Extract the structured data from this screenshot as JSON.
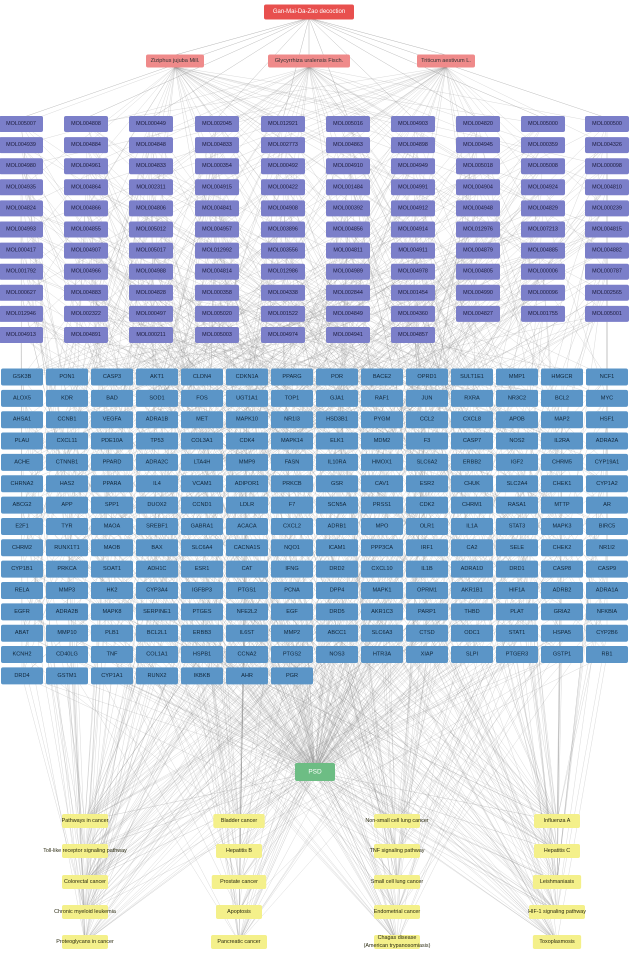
{
  "title": "Gan-Mai-Da-Zao decoction",
  "herbs": [
    "Ziziphus jujuba Mill.",
    "Glycyrrhiza uralensis Fisch.",
    "Triticum aestivum L."
  ],
  "molecule_columns": [
    [
      "MOL005007",
      "MOL004939",
      "MOL004980",
      "MOL004935",
      "MOL004824",
      "MOL004993",
      "MOL000417",
      "MOL001792",
      "MOL000627",
      "MOL012946",
      "MOL004913"
    ],
    [
      "MOL004808",
      "MOL004884",
      "MOL004961",
      "MOL004864",
      "MOL004866",
      "MOL004855",
      "MOL004907",
      "MOL004966",
      "MOL004883",
      "MOL002322",
      "MOL004891"
    ],
    [
      "MOL000449",
      "MOL004848",
      "MOL004833",
      "MOL002311",
      "MOL004806",
      "MOL005012",
      "MOL005017",
      "MOL004988",
      "MOL004828",
      "MOL000497",
      "MOL000211"
    ],
    [
      "MOL002045",
      "MOL004833",
      "MOL000354",
      "MOL004915",
      "MOL004841",
      "MOL004957",
      "MOL012992",
      "MOL004814",
      "MOL000358",
      "MOL005020",
      "MOL005003"
    ],
    [
      "MOL012921",
      "MOL002773",
      "MOL000492",
      "MOL000422",
      "MOL004908",
      "MOL003896",
      "MOL003556",
      "MOL012986",
      "MOL004338",
      "MOL001522",
      "MOL004974"
    ],
    [
      "MOL005016",
      "MOL004863",
      "MOL004910",
      "MOL001484",
      "MOL000392",
      "MOL004856",
      "MOL004811",
      "MOL004989",
      "MOL002844",
      "MOL004849",
      "MOL004941"
    ],
    [
      "MOL004903",
      "MOL004898",
      "MOL004949",
      "MOL004991",
      "MOL004912",
      "MOL004914",
      "MOL004911",
      "MOL004978",
      "MOL001454",
      "MOL004360",
      "MOL004857"
    ],
    [
      "MOL004820",
      "MOL004945",
      "MOL005018",
      "MOL004904",
      "MOL004948",
      "MOL012976",
      "MOL004879",
      "MOL004805",
      "MOL004990",
      "MOL004827"
    ],
    [
      "MOL005000",
      "MOL000359",
      "MOL005008",
      "MOL004924",
      "MOL004829",
      "MOL007213",
      "MOL004885",
      "MOL000006",
      "MOL000096",
      "MOL001755"
    ],
    [
      "MOL000500",
      "MOL004326",
      "MOL000098",
      "MOL004810",
      "MOL000239",
      "MOL004815",
      "MOL004882",
      "MOL000787",
      "MOL002565",
      "MOL005001"
    ]
  ],
  "target_rows": [
    [
      "GSK3B",
      "PON1",
      "CASP3",
      "AKT1",
      "CLDN4",
      "CDKN1A",
      "PPARG",
      "POR",
      "BACE2",
      "OPRD1",
      "SULT1E1",
      "MMP1",
      "HMGCR",
      "NCF1"
    ],
    [
      "ALOX5",
      "KDR",
      "BAD",
      "SOD1",
      "FOS",
      "UGT1A1",
      "TOP1",
      "GJA1",
      "RAF1",
      "JUN",
      "RXRA",
      "NR3C2",
      "BCL2",
      "MYC"
    ],
    [
      "AHSA1",
      "CCNB1",
      "VEGFA",
      "ADRA1B",
      "MET",
      "MAPK10",
      "NR1I3",
      "HSD3B1",
      "PYGM",
      "CCL2",
      "CXCL8",
      "APOB",
      "MAP2",
      "HSF1"
    ],
    [
      "PLAU",
      "CXCL11",
      "PDE10A",
      "TP53",
      "COL3A1",
      "CDK4",
      "MAPK14",
      "ELK1",
      "MDM2",
      "F3",
      "CASP7",
      "NOS2",
      "IL2RA",
      "ADRA2A"
    ],
    [
      "ACHE",
      "CTNNB1",
      "PPARD",
      "ADRA2C",
      "LTA4H",
      "MMP9",
      "FASN",
      "IL10RA",
      "HMOX1",
      "SLC6A2",
      "ERBB2",
      "IGF2",
      "CHRM5",
      "CYP19A1"
    ],
    [
      "CHRNA2",
      "HAS2",
      "PPARA",
      "IL4",
      "VCAM1",
      "ADIPOR1",
      "PRKCB",
      "GSR",
      "CAV1",
      "ESR2",
      "CHUK",
      "SLC2A4",
      "CHEK1",
      "CYP1A2"
    ],
    [
      "ABCG2",
      "APP",
      "SPP1",
      "DUOX2",
      "CCND1",
      "LDLR",
      "F7",
      "SCN5A",
      "PRSS1",
      "CDK2",
      "CHRM1",
      "RASA1",
      "MTTP",
      "AR"
    ],
    [
      "E2F1",
      "TYR",
      "MAOA",
      "SREBF1",
      "GABRA1",
      "ACACA",
      "CXCL2",
      "ADRB1",
      "MPO",
      "OLR1",
      "IL1A",
      "STAT3",
      "MAPK3",
      "BIRC5"
    ],
    [
      "CHRM2",
      "RUNX1T1",
      "MAOB",
      "BAX",
      "SLC6A4",
      "CACNA1S",
      "NQO1",
      "ICAM1",
      "PPP3CA",
      "IRF1",
      "CA2",
      "SELE",
      "CHEK2",
      "NR1I2"
    ],
    [
      "CYP1B1",
      "PRKCA",
      "SOAT1",
      "ADH1C",
      "ESR1",
      "CAT",
      "IFNG",
      "DRD2",
      "CXCL10",
      "IL1B",
      "ADRA1D",
      "DRD1",
      "CASP8",
      "CASP9"
    ],
    [
      "RELA",
      "MMP3",
      "HK2",
      "CYP3A4",
      "IGFBP3",
      "PTGS1",
      "PCNA",
      "DPP4",
      "MAPK1",
      "OPRM1",
      "AKR1B1",
      "HIF1A",
      "ADRB2",
      "ADRA1A"
    ],
    [
      "EGFR",
      "ADRA2B",
      "MAPK8",
      "SERPINE1",
      "PTGES",
      "NFE2L2",
      "EGF",
      "DRD5",
      "AKR1C3",
      "PARP1",
      "THBD",
      "PLAT",
      "GRIA2",
      "NFKBIA"
    ],
    [
      "ABAT",
      "MMP10",
      "PLB1",
      "BCL2L1",
      "ERBB3",
      "IL6ST",
      "MMP2",
      "ABCC1",
      "SLC6A3",
      "CTSD",
      "ODC1",
      "STAT1",
      "HSPA5",
      "CYP2B6"
    ],
    [
      "KCNH2",
      "CD40LG",
      "TNF",
      "COL1A1",
      "HSPB1",
      "CCNA2",
      "PTGS2",
      "NOS3",
      "HTR3A",
      "XIAP",
      "SLPI",
      "PTGER3",
      "GSTP1",
      "RB1"
    ],
    [
      "DRD4",
      "GSTM1",
      "CYP1A1",
      "RUNX2",
      "IKBKB",
      "AHR",
      "PGR"
    ]
  ],
  "disease": "PSD",
  "pathway_columns": [
    [
      "Pathways in cancer",
      "Toll-like receptor signaling pathway",
      "Colorectal cancer",
      "Chronic myeloid leukemia",
      "Proteoglycans in cancer"
    ],
    [
      "Bladder cancer",
      "Hepatitis B",
      "Prostate cancer",
      "Apoptosis",
      "Pancreatic cancer"
    ],
    [
      "Non-small cell lung cancer",
      "TNF signaling pathway",
      "Small cell lung cancer",
      "Endometrial cancer",
      "Chagas disease (American trypanosomiasis)"
    ],
    [
      "Influenza A",
      "Hepatitis C",
      "Leishmaniasis",
      "HIF-1 signaling pathway",
      "Toxoplasmosis"
    ]
  ],
  "colors": {
    "title_node": "#e8504e",
    "herb_node": "#ef8a8a",
    "molecule_node": "#7b7fc9",
    "target_node": "#5b95c7",
    "disease_node": "#6dbd84",
    "pathway_node": "#f4f08a",
    "edge": "#8a8a8a"
  }
}
